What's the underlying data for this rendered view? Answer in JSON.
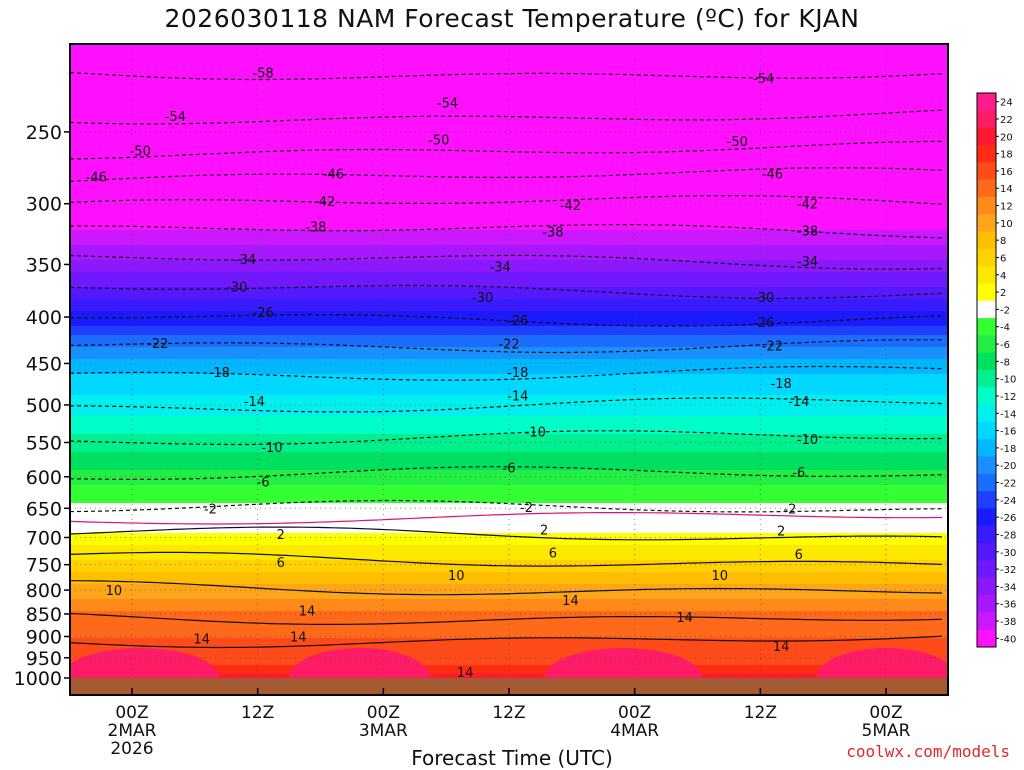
{
  "page": {
    "title": "2026030118 NAM Forecast Temperature (ºC) for KJAN",
    "credit": "coolwx.com/models"
  },
  "chart_data": {
    "type": "heatmap",
    "title": "2026030118 NAM Forecast Temperature (ºC) for KJAN",
    "xlabel": "Forecast Time (UTC)",
    "ylabel": "",
    "y_scale": "log-pressure",
    "y_inverted": true,
    "ylim": [
      1000,
      200
    ],
    "y_ticks": [
      250,
      300,
      350,
      400,
      450,
      500,
      550,
      600,
      650,
      700,
      750,
      800,
      850,
      900,
      950,
      1000
    ],
    "x_ticks": [
      {
        "lines": [
          "00Z",
          "2MAR",
          "2026"
        ]
      },
      {
        "lines": [
          "12Z"
        ]
      },
      {
        "lines": [
          "00Z",
          "3MAR"
        ]
      },
      {
        "lines": [
          "12Z"
        ]
      },
      {
        "lines": [
          "00Z",
          "4MAR"
        ]
      },
      {
        "lines": [
          "12Z"
        ]
      },
      {
        "lines": [
          "00Z",
          "5MAR"
        ]
      }
    ],
    "grid": true,
    "legend": "right",
    "colorbar": {
      "labels": [
        "24",
        "22",
        "20",
        "18",
        "16",
        "14",
        "12",
        "10",
        "8",
        "6",
        "4",
        "2",
        "-2",
        "-4",
        "-6",
        "-8",
        "-10",
        "-12",
        "-14",
        "-16",
        "-18",
        "-20",
        "-22",
        "-24",
        "-26",
        "-28",
        "-30",
        "-32",
        "-34",
        "-36",
        "-38",
        "-40"
      ],
      "colors": [
        "#ff1c8c",
        "#ff1c66",
        "#ff1a33",
        "#ff2b12",
        "#ff4a1a",
        "#ff6a1a",
        "#ff8a1a",
        "#ffa51a",
        "#ffbe00",
        "#ffd200",
        "#ffe800",
        "#ffff00",
        "#ffffff",
        "#33ff33",
        "#22ee44",
        "#00e060",
        "#00f090",
        "#00ffc8",
        "#00f0f0",
        "#00d8ff",
        "#00b8ff",
        "#1a90ff",
        "#1c6cff",
        "#2040ff",
        "#1a1aff",
        "#3a1aff",
        "#5518ff",
        "#7018ff",
        "#8c18ff",
        "#a818ff",
        "#cc18ff",
        "#ff10ff"
      ]
    },
    "temperature_profile": [
      {
        "pressure": 1000,
        "t": 20
      },
      {
        "pressure": 975,
        "t": 18
      },
      {
        "pressure": 950,
        "t": 16
      },
      {
        "pressure": 900,
        "t": 15
      },
      {
        "pressure": 850,
        "t": 14
      },
      {
        "pressure": 800,
        "t": 10
      },
      {
        "pressure": 750,
        "t": 6
      },
      {
        "pressure": 700,
        "t": 2
      },
      {
        "pressure": 650,
        "t": -2
      },
      {
        "pressure": 600,
        "t": -6
      },
      {
        "pressure": 550,
        "t": -10
      },
      {
        "pressure": 500,
        "t": -14
      },
      {
        "pressure": 450,
        "t": -18
      },
      {
        "pressure": 425,
        "t": -22
      },
      {
        "pressure": 400,
        "t": -26
      },
      {
        "pressure": 375,
        "t": -30
      },
      {
        "pressure": 350,
        "t": -34
      },
      {
        "pressure": 325,
        "t": -38
      },
      {
        "pressure": 300,
        "t": -42
      },
      {
        "pressure": 280,
        "t": -46
      },
      {
        "pressure": 260,
        "t": -50
      },
      {
        "pressure": 240,
        "t": -54
      },
      {
        "pressure": 215,
        "t": -58
      }
    ],
    "contours": [
      {
        "value": "-58",
        "pressure": 215,
        "dashed": true
      },
      {
        "value": "-54",
        "pressure": 240,
        "dashed": true
      },
      {
        "value": "-50",
        "pressure": 262,
        "dashed": true
      },
      {
        "value": "-46",
        "pressure": 280,
        "dashed": true
      },
      {
        "value": "-42",
        "pressure": 300,
        "dashed": true
      },
      {
        "value": "-38",
        "pressure": 322,
        "dashed": true
      },
      {
        "value": "-34",
        "pressure": 347,
        "dashed": true
      },
      {
        "value": "-30",
        "pressure": 373,
        "dashed": true
      },
      {
        "value": "-26",
        "pressure": 400,
        "dashed": true
      },
      {
        "value": "-22",
        "pressure": 428,
        "dashed": true
      },
      {
        "value": "-18",
        "pressure": 460,
        "dashed": true
      },
      {
        "value": "-14",
        "pressure": 500,
        "dashed": true
      },
      {
        "value": "-10",
        "pressure": 545,
        "dashed": true
      },
      {
        "value": "-6",
        "pressure": 598,
        "dashed": true
      },
      {
        "value": "-2",
        "pressure": 652,
        "dashed": true
      },
      {
        "value": "2",
        "pressure": 697,
        "dashed": false
      },
      {
        "value": "6",
        "pressure": 742,
        "dashed": false
      },
      {
        "value": "10",
        "pressure": 795,
        "dashed": false
      },
      {
        "value": "14",
        "pressure": 855,
        "dashed": false
      },
      {
        "value": "14",
        "pressure": 905,
        "dashed": false
      }
    ],
    "contour_label_positions": [
      {
        "value": "-58",
        "x_frac": 0.22,
        "pressure": 215
      },
      {
        "value": "-54",
        "x_frac": 0.12,
        "pressure": 240
      },
      {
        "value": "-54",
        "x_frac": 0.43,
        "pressure": 232
      },
      {
        "value": "-54",
        "x_frac": 0.79,
        "pressure": 218
      },
      {
        "value": "-50",
        "x_frac": 0.08,
        "pressure": 262
      },
      {
        "value": "-50",
        "x_frac": 0.42,
        "pressure": 255
      },
      {
        "value": "-50",
        "x_frac": 0.76,
        "pressure": 256
      },
      {
        "value": "-46",
        "x_frac": 0.03,
        "pressure": 280
      },
      {
        "value": "-46",
        "x_frac": 0.3,
        "pressure": 278
      },
      {
        "value": "-46",
        "x_frac": 0.8,
        "pressure": 278
      },
      {
        "value": "-42",
        "x_frac": 0.29,
        "pressure": 298
      },
      {
        "value": "-42",
        "x_frac": 0.57,
        "pressure": 301
      },
      {
        "value": "-42",
        "x_frac": 0.84,
        "pressure": 300
      },
      {
        "value": "-38",
        "x_frac": 0.28,
        "pressure": 318
      },
      {
        "value": "-38",
        "x_frac": 0.55,
        "pressure": 322
      },
      {
        "value": "-38",
        "x_frac": 0.84,
        "pressure": 321
      },
      {
        "value": "-34",
        "x_frac": 0.2,
        "pressure": 345
      },
      {
        "value": "-34",
        "x_frac": 0.49,
        "pressure": 352
      },
      {
        "value": "-34",
        "x_frac": 0.84,
        "pressure": 347
      },
      {
        "value": "-30",
        "x_frac": 0.19,
        "pressure": 370
      },
      {
        "value": "-30",
        "x_frac": 0.47,
        "pressure": 380
      },
      {
        "value": "-30",
        "x_frac": 0.79,
        "pressure": 380
      },
      {
        "value": "-26",
        "x_frac": 0.22,
        "pressure": 395
      },
      {
        "value": "-26",
        "x_frac": 0.51,
        "pressure": 403
      },
      {
        "value": "-26",
        "x_frac": 0.79,
        "pressure": 405
      },
      {
        "value": "-22",
        "x_frac": 0.1,
        "pressure": 427
      },
      {
        "value": "-22",
        "x_frac": 0.5,
        "pressure": 428
      },
      {
        "value": "-22",
        "x_frac": 0.8,
        "pressure": 430
      },
      {
        "value": "-18",
        "x_frac": 0.17,
        "pressure": 460
      },
      {
        "value": "-18",
        "x_frac": 0.51,
        "pressure": 460
      },
      {
        "value": "-18",
        "x_frac": 0.81,
        "pressure": 473
      },
      {
        "value": "-14",
        "x_frac": 0.21,
        "pressure": 495
      },
      {
        "value": "-14",
        "x_frac": 0.51,
        "pressure": 488
      },
      {
        "value": "-14",
        "x_frac": 0.83,
        "pressure": 495
      },
      {
        "value": "-10",
        "x_frac": 0.23,
        "pressure": 556
      },
      {
        "value": "-10",
        "x_frac": 0.53,
        "pressure": 535
      },
      {
        "value": "-10",
        "x_frac": 0.84,
        "pressure": 545
      },
      {
        "value": "-6",
        "x_frac": 0.22,
        "pressure": 607
      },
      {
        "value": "-6",
        "x_frac": 0.5,
        "pressure": 586
      },
      {
        "value": "-6",
        "x_frac": 0.83,
        "pressure": 593
      },
      {
        "value": "-2",
        "x_frac": 0.16,
        "pressure": 650
      },
      {
        "value": "-2",
        "x_frac": 0.52,
        "pressure": 648
      },
      {
        "value": "-2",
        "x_frac": 0.82,
        "pressure": 650
      },
      {
        "value": "2",
        "x_frac": 0.24,
        "pressure": 694
      },
      {
        "value": "2",
        "x_frac": 0.54,
        "pressure": 686
      },
      {
        "value": "2",
        "x_frac": 0.81,
        "pressure": 688
      },
      {
        "value": "6",
        "x_frac": 0.24,
        "pressure": 745
      },
      {
        "value": "6",
        "x_frac": 0.55,
        "pressure": 727
      },
      {
        "value": "6",
        "x_frac": 0.83,
        "pressure": 730
      },
      {
        "value": "10",
        "x_frac": 0.05,
        "pressure": 800
      },
      {
        "value": "10",
        "x_frac": 0.44,
        "pressure": 770
      },
      {
        "value": "10",
        "x_frac": 0.74,
        "pressure": 770
      },
      {
        "value": "14",
        "x_frac": 0.27,
        "pressure": 842
      },
      {
        "value": "14",
        "x_frac": 0.57,
        "pressure": 820
      },
      {
        "value": "14",
        "x_frac": 0.7,
        "pressure": 856
      },
      {
        "value": "14",
        "x_frac": 0.15,
        "pressure": 905
      },
      {
        "value": "14",
        "x_frac": 0.26,
        "pressure": 900
      },
      {
        "value": "14",
        "x_frac": 0.81,
        "pressure": 922
      },
      {
        "value": "14",
        "x_frac": 0.45,
        "pressure": 985
      }
    ]
  }
}
